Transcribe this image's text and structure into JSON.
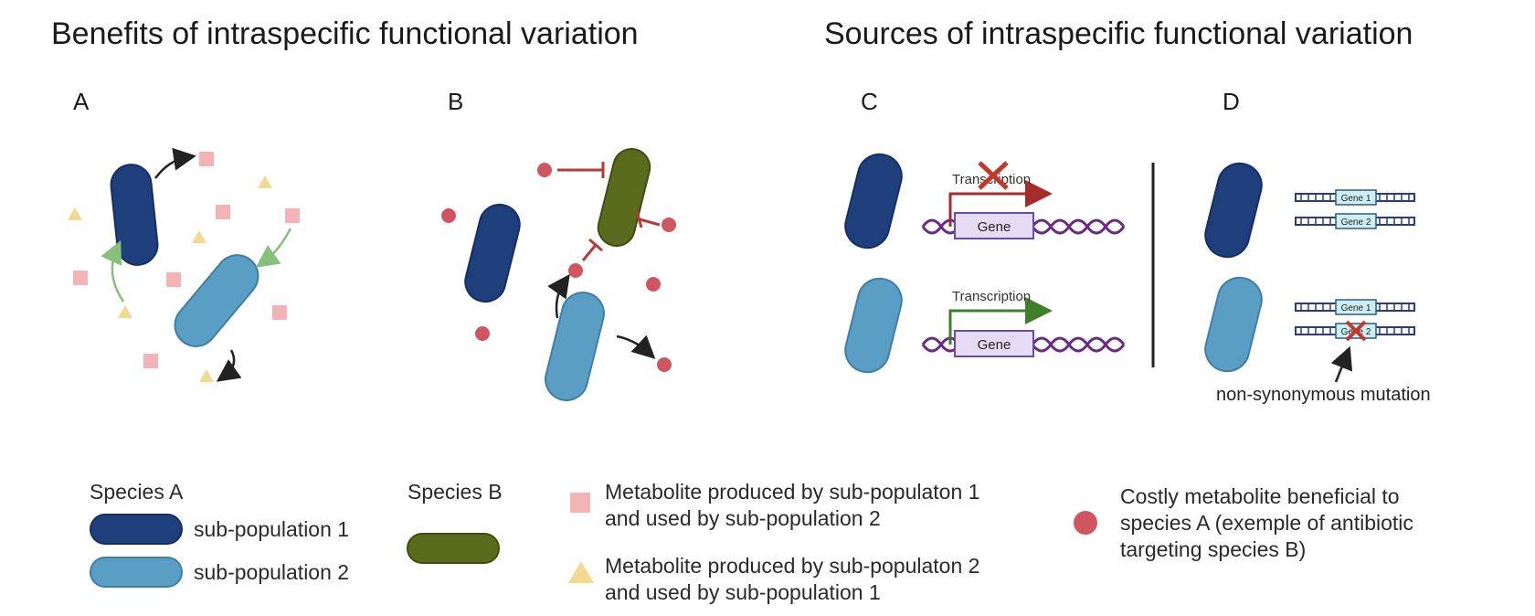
{
  "headings": {
    "benefits": "Benefits of intraspecific functional variation",
    "sources": "Sources of intraspecific functional variation"
  },
  "panels": {
    "a": "A",
    "b": "B",
    "c": "C",
    "d": "D"
  },
  "panel_c": {
    "transcription_top": "Transcription",
    "transcription_bottom": "Transcription",
    "gene_top": "Gene",
    "gene_bottom": "Gene"
  },
  "panel_d": {
    "gene1_top": "Gene 1",
    "gene2_top": "Gene 2",
    "gene1_bottom": "Gene 1",
    "gene2_bottom": "Gene 2",
    "mutation_label": "non-synonymous mutation"
  },
  "legend": {
    "species_a": "Species A",
    "species_b": "Species B",
    "sub_pop_1": "sub-population 1",
    "sub_pop_2": "sub-population 2",
    "square_line1": "Metabolite produced by sub-populaton 1",
    "square_line2": "and used by sub-population 2",
    "triangle_line1": "Metabolite produced by sub-populaton 2",
    "triangle_line2": "and used by sub-population 1",
    "circle_line1": "Costly metabolite beneficial to",
    "circle_line2": "species A (exemple of antibiotic",
    "circle_line3": "targeting species B)"
  },
  "colors": {
    "sub_pop_1": "#1f3f7c",
    "sub_pop_2": "#5b9ec4",
    "species_b": "#5a6b1e",
    "square_metabolite": "#f4b3b7",
    "triangle_metabolite": "#f3d88f",
    "circle_metabolite": "#cf5660",
    "inhibition": "#b73a3a",
    "green_arrow": "#86c07a",
    "dna": "#6a2a86",
    "gene_box": "#e4dcf5",
    "gene_border": "#6a4ab0",
    "gene_d_box": "#cdeef2",
    "transcription_blocked": "#a62b2b",
    "transcription_active": "#3f7f2b"
  }
}
